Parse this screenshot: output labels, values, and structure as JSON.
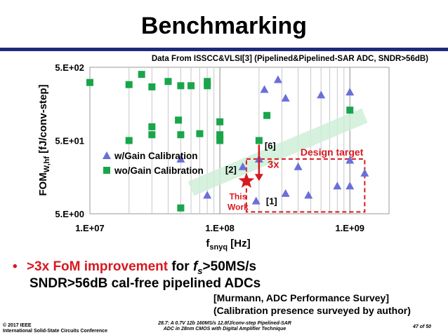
{
  "slide": {
    "title": "Benchmarking",
    "data_source": "Data From ISSCC&VLSI[3] (Pipelined&Pipelined-SAR ADC, SNDR>56dB)"
  },
  "chart_data": {
    "type": "scatter",
    "x_scale": "log",
    "y_scale": "log",
    "xlim": [
      10000000,
      2000000000
    ],
    "ylim": [
      5,
      500
    ],
    "x_ticks": [
      "1.E+07",
      "1.E+08",
      "1.E+09"
    ],
    "y_ticks": [
      "5.E+02",
      "5.E+01",
      "5.E+00"
    ],
    "xlabel_main": "f",
    "xlabel_sub": "snyq",
    "xlabel_unit": " [Hz]",
    "ylabel_main": "FOM",
    "ylabel_sub": "W,hf",
    "ylabel_unit": " [fJ/conv-step]",
    "grid": "vertical",
    "legend_position": "lower-left",
    "colors": {
      "with_cal": "#6a6fd8",
      "without_cal": "#1aa54b",
      "accent": "#d71920",
      "band": "#cfeed7"
    },
    "series": [
      {
        "name": "w/Gain Calibration",
        "marker": "triangle",
        "points": [
          [
            50000000,
            28
          ],
          [
            80000000,
            9
          ],
          [
            150000000,
            22
          ],
          [
            190000000,
            7.5
          ],
          [
            200000000,
            28
          ],
          [
            220000000,
            250
          ],
          [
            280000000,
            340
          ],
          [
            320000000,
            190
          ],
          [
            320000000,
            9.5
          ],
          [
            400000000,
            22
          ],
          [
            480000000,
            9
          ],
          [
            600000000,
            210
          ],
          [
            800000000,
            12
          ],
          [
            1000000000,
            12
          ],
          [
            1000000000,
            27
          ],
          [
            1000000000,
            230
          ],
          [
            1300000000,
            18
          ]
        ]
      },
      {
        "name": "wo/Gain Calibration",
        "marker": "square",
        "points": [
          [
            10000000,
            310
          ],
          [
            20000000,
            290
          ],
          [
            20000000,
            50
          ],
          [
            25000000,
            400
          ],
          [
            30000000,
            270
          ],
          [
            30000000,
            60
          ],
          [
            30000000,
            77
          ],
          [
            40000000,
            320
          ],
          [
            48000000,
            95
          ],
          [
            50000000,
            280
          ],
          [
            50000000,
            60
          ],
          [
            50000000,
            6
          ],
          [
            60000000,
            280
          ],
          [
            70000000,
            62
          ],
          [
            80000000,
            320
          ],
          [
            80000000,
            280
          ],
          [
            100000000,
            90
          ],
          [
            100000000,
            60
          ],
          [
            100000000,
            50
          ],
          [
            200000000,
            50
          ],
          [
            230000000,
            110
          ],
          [
            1000000000,
            130
          ]
        ]
      }
    ],
    "this_work": {
      "x": 160000000,
      "y": 14,
      "label_line1": "This",
      "label_line2": "Work"
    },
    "design_target": {
      "label": "Design target",
      "x_range": [
        160000000,
        1300000000
      ],
      "y_range": [
        5.3,
        28
      ]
    },
    "improvement": {
      "label": "3x",
      "x": 200000000,
      "from": 50,
      "to": 14
    },
    "annotations": [
      {
        "text": "[6]",
        "x": 200000000,
        "y": 50
      },
      {
        "text": "[2]",
        "x": 160000000,
        "y": 14
      },
      {
        "text": "[1]",
        "x": 200000000,
        "y": 7.5
      }
    ]
  },
  "bullet": {
    "marker": "•",
    "highlight": ">3x FoM improvement",
    "mid": " for ",
    "fs_main": "f",
    "fs_sub": "s",
    "after": ">50MS/s",
    "line2": "SNDR>56dB cal-free pipelined ADCs"
  },
  "reference": {
    "line1": "[Murmann, ADC Performance Survey]",
    "line2": "(Calibration presence surveyed by author)"
  },
  "footer": {
    "copyright": "© 2017 IEEE",
    "conference": "International Solid-State Circuits Conference",
    "paper_line1": "28.7: A 0.7V 12b 160MS/s 12.8fJ/conv-step Pipelined-SAR",
    "paper_line2": "ADC in 28nm CMOS with Digital Amplifier Technique",
    "page": "47 of 50"
  }
}
